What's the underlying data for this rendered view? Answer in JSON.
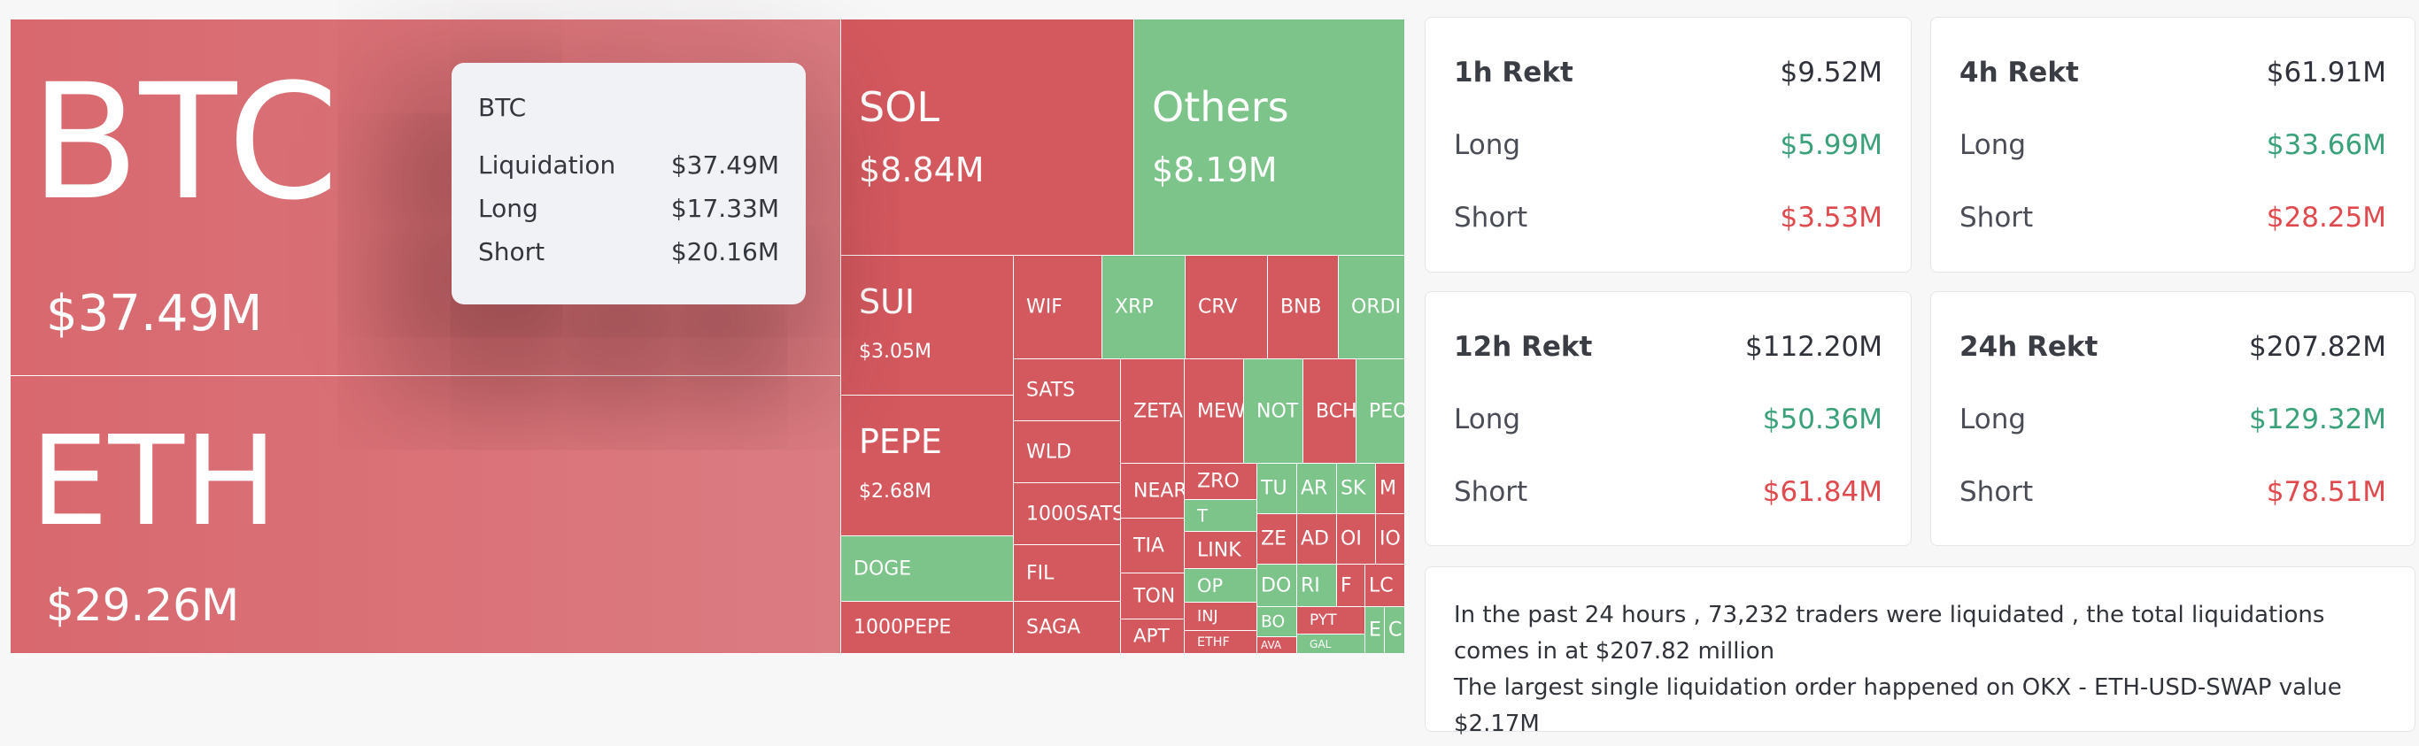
{
  "treemap": {
    "tiles": [
      {
        "name": "BTC",
        "value": "$37.49M",
        "color": "pale"
      },
      {
        "name": "ETH",
        "value": "$29.26M",
        "color": "pale"
      },
      {
        "name": "SOL",
        "value": "$8.84M",
        "color": "red"
      },
      {
        "name": "Others",
        "value": "$8.19M",
        "color": "green"
      },
      {
        "name": "SUI",
        "value": "$3.05M",
        "color": "red"
      },
      {
        "name": "PEPE",
        "value": "$2.68M",
        "color": "red"
      },
      {
        "name": "DOGE",
        "color": "green"
      },
      {
        "name": "1000PEPE",
        "color": "red"
      },
      {
        "name": "WIF",
        "color": "red"
      },
      {
        "name": "XRP",
        "color": "green"
      },
      {
        "name": "CRV",
        "color": "red"
      },
      {
        "name": "BNB",
        "color": "red"
      },
      {
        "name": "ORDI",
        "color": "green"
      },
      {
        "name": "SATS",
        "color": "red"
      },
      {
        "name": "WLD",
        "color": "red"
      },
      {
        "name": "1000SATS",
        "color": "red"
      },
      {
        "name": "FIL",
        "color": "red"
      },
      {
        "name": "SAGA",
        "color": "red"
      },
      {
        "name": "ZETA",
        "color": "red"
      },
      {
        "name": "MEW",
        "color": "red"
      },
      {
        "name": "NOT",
        "color": "green"
      },
      {
        "name": "BCH",
        "color": "red"
      },
      {
        "name": "PEO",
        "color": "green"
      },
      {
        "name": "NEAR",
        "color": "red"
      },
      {
        "name": "TIA",
        "color": "red"
      },
      {
        "name": "TON",
        "color": "red"
      },
      {
        "name": "APT",
        "color": "red"
      },
      {
        "name": "ZRO",
        "color": "red"
      },
      {
        "name": "T",
        "color": "green"
      },
      {
        "name": "LINK",
        "color": "red"
      },
      {
        "name": "OP",
        "color": "green"
      },
      {
        "name": "INJ",
        "color": "red"
      },
      {
        "name": "ETHF",
        "color": "red"
      },
      {
        "name": "TU",
        "color": "green"
      },
      {
        "name": "AR",
        "color": "green"
      },
      {
        "name": "SK",
        "color": "green"
      },
      {
        "name": "M",
        "color": "red"
      },
      {
        "name": "ZE",
        "color": "red"
      },
      {
        "name": "AD",
        "color": "red"
      },
      {
        "name": "OI",
        "color": "red"
      },
      {
        "name": "IO",
        "color": "red"
      },
      {
        "name": "DO",
        "color": "green"
      },
      {
        "name": "RI",
        "color": "green"
      },
      {
        "name": "F",
        "color": "red"
      },
      {
        "name": "LC",
        "color": "red"
      },
      {
        "name": "BO",
        "color": "green"
      },
      {
        "name": "AVA",
        "color": "red"
      },
      {
        "name": "PYT",
        "color": "red"
      },
      {
        "name": "GAL",
        "color": "green"
      },
      {
        "name": "E",
        "color": "green"
      },
      {
        "name": "C",
        "color": "green"
      }
    ]
  },
  "tooltip": {
    "title": "BTC",
    "rows": [
      {
        "label": "Liquidation",
        "value": "$37.49M"
      },
      {
        "label": "Long",
        "value": "$17.33M"
      },
      {
        "label": "Short",
        "value": "$20.16M"
      }
    ]
  },
  "cards": [
    {
      "title": "1h Rekt",
      "total": "$9.52M",
      "long_label": "Long",
      "long": "$5.99M",
      "short_label": "Short",
      "short": "$3.53M"
    },
    {
      "title": "4h Rekt",
      "total": "$61.91M",
      "long_label": "Long",
      "long": "$33.66M",
      "short_label": "Short",
      "short": "$28.25M"
    },
    {
      "title": "12h Rekt",
      "total": "$112.20M",
      "long_label": "Long",
      "long": "$50.36M",
      "short_label": "Short",
      "short": "$61.84M"
    },
    {
      "title": "24h Rekt",
      "total": "$207.82M",
      "long_label": "Long",
      "long": "$129.32M",
      "short_label": "Short",
      "short": "$78.51M"
    }
  ],
  "summary": {
    "line1": "In the past 24 hours , 73,232 traders were liquidated , the total liquidations comes in at $207.82 million",
    "line2": "The largest single liquidation order happened on OKX - ETH-USD-SWAP value $2.17M"
  },
  "colors": {
    "long": "#3aa17a",
    "short": "#e04a4e",
    "red_tile": "#d4595f",
    "green_tile": "#7dc48a"
  }
}
